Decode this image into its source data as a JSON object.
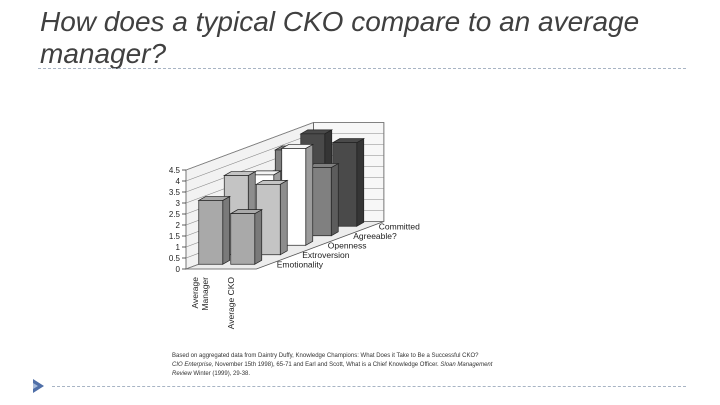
{
  "slide": {
    "title": "How does a typical CKO compare to an average manager?"
  },
  "chart_data": {
    "type": "bar",
    "subtype": "3d-grouped",
    "title": "",
    "categories": [
      "Emotionality",
      "Extroversion",
      "Openness",
      "Agreeable?",
      "Committed"
    ],
    "series": [
      {
        "name": "Average Manager",
        "values": [
          2.9,
          3.6,
          3.2,
          3.9,
          4.2
        ]
      },
      {
        "name": "Average CKO",
        "values": [
          2.3,
          3.2,
          4.4,
          3.1,
          3.8
        ]
      }
    ],
    "ylim": [
      0,
      4.5
    ],
    "yticks": [
      "0",
      "0.5",
      "1",
      "1.5",
      "2",
      "2.5",
      "3",
      "3.5",
      "4",
      "4.5"
    ],
    "grid": true,
    "colors": {
      "Emotionality": "#a9a9a9",
      "Extroversion": "#c4c4c4",
      "Openness": "#ffffff",
      "Agreeable?": "#808080",
      "Committed": "#4a4a4a"
    }
  },
  "source": {
    "line1": "Based on aggregated data from Daintry Duffy, Knowledge Champions: What Does it Take to Be a Successful CKO?",
    "line2_italic": "CIO Enterprise,",
    "line2_rest": " November 15th 1998), 65-71 and Earl and Scott, What is a Chief Knowledge Officer. ",
    "line2_italic2": "Sloan Management",
    "line3_italic": "Review",
    "line3_rest": " Winter (1999), 29-38."
  }
}
